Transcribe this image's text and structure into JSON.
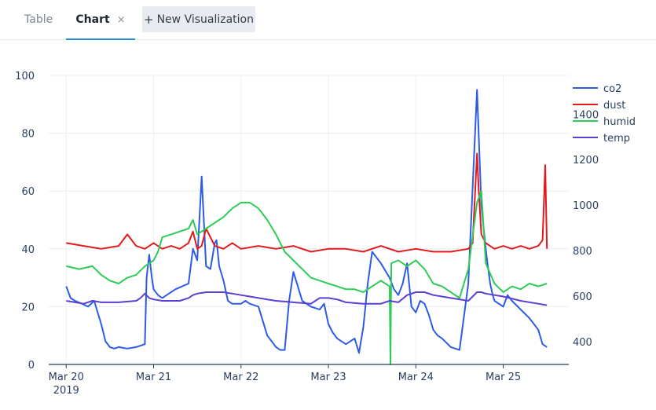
{
  "tabs": {
    "table_label": "Table",
    "chart_label": "Chart",
    "close_glyph": "×",
    "new_vis_label": "New Visualization",
    "new_vis_glyph": "+"
  },
  "chart_data": {
    "type": "line",
    "x_tick_labels": [
      "Mar 20",
      "Mar 21",
      "Mar 22",
      "Mar 23",
      "Mar 24",
      "Mar 25"
    ],
    "x_year_label": "2019",
    "x_range": [
      -0.2,
      5.75
    ],
    "y_left_ticks": [
      0,
      20,
      40,
      60,
      80,
      100
    ],
    "y_left_range": [
      0,
      100
    ],
    "y_right_ticks": [
      400,
      600,
      800,
      1000,
      1200,
      1400
    ],
    "y_right_range": [
      300,
      1570
    ],
    "grid": true,
    "legend_position": "top-right",
    "series": [
      {
        "name": "co2",
        "color": "#2e5be6",
        "axis": "left",
        "x": [
          0.0,
          0.05,
          0.1,
          0.18,
          0.25,
          0.32,
          0.35,
          0.4,
          0.45,
          0.5,
          0.55,
          0.6,
          0.7,
          0.8,
          0.9,
          0.92,
          0.95,
          0.98,
          1.0,
          1.05,
          1.1,
          1.15,
          1.25,
          1.4,
          1.45,
          1.5,
          1.55,
          1.6,
          1.65,
          1.7,
          1.72,
          1.75,
          1.8,
          1.85,
          1.9,
          1.95,
          2.0,
          2.05,
          2.1,
          2.2,
          2.3,
          2.4,
          2.45,
          2.5,
          2.55,
          2.6,
          2.7,
          2.8,
          2.9,
          2.95,
          3.0,
          3.05,
          3.1,
          3.2,
          3.3,
          3.35,
          3.4,
          3.45,
          3.5,
          3.6,
          3.7,
          3.75,
          3.8,
          3.85,
          3.9,
          3.95,
          4.0,
          4.05,
          4.1,
          4.15,
          4.2,
          4.25,
          4.3,
          4.4,
          4.5,
          4.6,
          4.7,
          4.75,
          4.8,
          4.82,
          4.85,
          4.88,
          4.9,
          4.95,
          5.0,
          5.05,
          5.1,
          5.2,
          5.3,
          5.4,
          5.45,
          5.5
        ],
        "y": [
          27,
          23,
          22,
          21,
          20,
          22,
          19,
          14,
          8,
          6,
          5.5,
          6,
          5.5,
          6,
          7,
          30,
          38,
          30,
          26,
          24,
          23,
          24,
          26,
          28,
          40,
          36,
          65,
          34,
          33,
          42,
          43,
          34,
          29,
          22,
          21,
          21,
          21,
          22,
          21,
          20,
          10,
          6,
          5,
          5,
          22,
          32,
          22,
          20,
          19,
          21,
          14,
          11,
          9,
          7,
          9,
          4,
          13,
          28,
          39,
          35,
          30,
          26,
          24,
          28,
          35,
          20,
          18,
          22,
          21,
          17,
          12,
          10,
          9,
          6,
          5,
          28,
          95,
          55,
          40,
          35,
          28,
          24,
          22,
          21,
          20,
          24,
          22,
          19,
          16,
          12,
          7,
          6
        ]
      },
      {
        "name": "dust",
        "color": "#e31a1c",
        "axis": "left",
        "x": [
          0.0,
          0.2,
          0.4,
          0.6,
          0.7,
          0.8,
          0.9,
          1.0,
          1.1,
          1.2,
          1.3,
          1.4,
          1.45,
          1.5,
          1.55,
          1.6,
          1.7,
          1.8,
          1.9,
          2.0,
          2.2,
          2.4,
          2.6,
          2.8,
          3.0,
          3.2,
          3.4,
          3.6,
          3.8,
          4.0,
          4.2,
          4.4,
          4.6,
          4.65,
          4.7,
          4.72,
          4.75,
          4.8,
          4.9,
          5.0,
          5.1,
          5.2,
          5.3,
          5.4,
          5.45,
          5.48,
          5.5
        ],
        "y": [
          42,
          41,
          40,
          41,
          45,
          41,
          40,
          42,
          40,
          41,
          40,
          42,
          46,
          40,
          41,
          47,
          41,
          40,
          42,
          40,
          41,
          40,
          41,
          39,
          40,
          40,
          39,
          41,
          39,
          40,
          39,
          39,
          40,
          42,
          73,
          60,
          45,
          42,
          40,
          41,
          40,
          41,
          40,
          41,
          43,
          69,
          40
        ]
      },
      {
        "name": "humid",
        "color": "#2ecc55",
        "axis": "left",
        "x": [
          0.0,
          0.15,
          0.3,
          0.4,
          0.5,
          0.6,
          0.7,
          0.8,
          0.9,
          1.0,
          1.05,
          1.1,
          1.2,
          1.3,
          1.4,
          1.45,
          1.5,
          1.6,
          1.7,
          1.8,
          1.9,
          2.0,
          2.1,
          2.2,
          2.3,
          2.4,
          2.5,
          2.6,
          2.7,
          2.8,
          2.9,
          3.0,
          3.1,
          3.2,
          3.3,
          3.4,
          3.5,
          3.6,
          3.7,
          3.71,
          3.72,
          3.8,
          3.9,
          4.0,
          4.1,
          4.2,
          4.3,
          4.4,
          4.5,
          4.6,
          4.7,
          4.75,
          4.8,
          4.9,
          5.0,
          5.1,
          5.2,
          5.3,
          5.4,
          5.5
        ],
        "y": [
          34,
          33,
          34,
          31,
          29,
          28,
          30,
          31,
          34,
          36,
          39,
          44,
          45,
          46,
          47,
          50,
          45,
          47,
          49,
          51,
          54,
          56,
          56,
          54,
          50,
          45,
          39,
          36,
          33,
          30,
          29,
          28,
          27,
          26,
          26,
          25,
          27,
          29,
          27,
          0,
          35,
          36,
          34,
          36,
          33,
          28,
          27,
          25,
          23,
          33,
          56,
          60,
          35,
          28,
          25,
          27,
          26,
          28,
          27,
          28
        ]
      },
      {
        "name": "temp",
        "color": "#5b3fd4",
        "axis": "left",
        "x": [
          0.0,
          0.1,
          0.2,
          0.3,
          0.4,
          0.6,
          0.8,
          0.85,
          0.9,
          0.95,
          1.0,
          1.1,
          1.3,
          1.4,
          1.45,
          1.5,
          1.6,
          1.8,
          1.9,
          2.0,
          2.1,
          2.2,
          2.4,
          2.6,
          2.8,
          2.9,
          3.0,
          3.1,
          3.2,
          3.4,
          3.6,
          3.7,
          3.8,
          3.9,
          4.0,
          4.1,
          4.2,
          4.4,
          4.6,
          4.65,
          4.7,
          4.75,
          4.8,
          5.0,
          5.2,
          5.4,
          5.5
        ],
        "y": [
          22,
          21.5,
          21,
          22,
          21.5,
          21.5,
          22,
          23,
          24.5,
          23,
          22.5,
          22,
          22,
          23,
          24,
          24.5,
          25,
          25,
          24.5,
          24,
          23.5,
          23,
          22,
          21.5,
          21,
          23,
          23,
          22.5,
          21.5,
          21,
          21,
          22,
          21.5,
          24,
          25,
          25,
          24,
          23,
          22,
          23.5,
          25,
          25,
          24.5,
          23.5,
          22,
          21,
          20.5
        ]
      }
    ]
  }
}
